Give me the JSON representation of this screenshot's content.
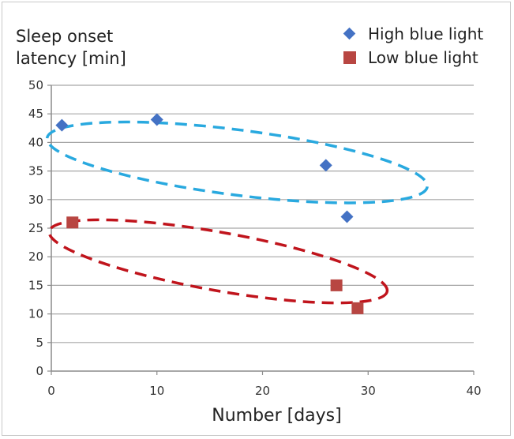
{
  "chart_data": {
    "type": "scatter",
    "title": "",
    "ylabel": "Sleep onset\nlatency [min]",
    "xlabel": "Number [days]",
    "xlim": [
      0,
      40
    ],
    "ylim": [
      0,
      50
    ],
    "x_ticks": [
      0,
      10,
      20,
      30,
      40
    ],
    "y_ticks": [
      0,
      5,
      10,
      15,
      20,
      25,
      30,
      35,
      40,
      45,
      50
    ],
    "grid": "horizontal",
    "legend_position": "top-right",
    "series": [
      {
        "name": "High blue light",
        "marker": "diamond",
        "color": "#4472c4",
        "points": [
          {
            "x": 1,
            "y": 43
          },
          {
            "x": 10,
            "y": 44
          },
          {
            "x": 26,
            "y": 36
          },
          {
            "x": 28,
            "y": 27
          }
        ]
      },
      {
        "name": "Low blue light",
        "marker": "square",
        "color": "#b84642",
        "points": [
          {
            "x": 2,
            "y": 26
          },
          {
            "x": 27,
            "y": 15
          },
          {
            "x": 29,
            "y": 11
          }
        ]
      }
    ],
    "annotations": [
      {
        "type": "dashed-ellipse",
        "series": "High blue light",
        "color": "#29a9df"
      },
      {
        "type": "dashed-ellipse",
        "series": "Low blue light",
        "color": "#c0141c"
      }
    ]
  }
}
